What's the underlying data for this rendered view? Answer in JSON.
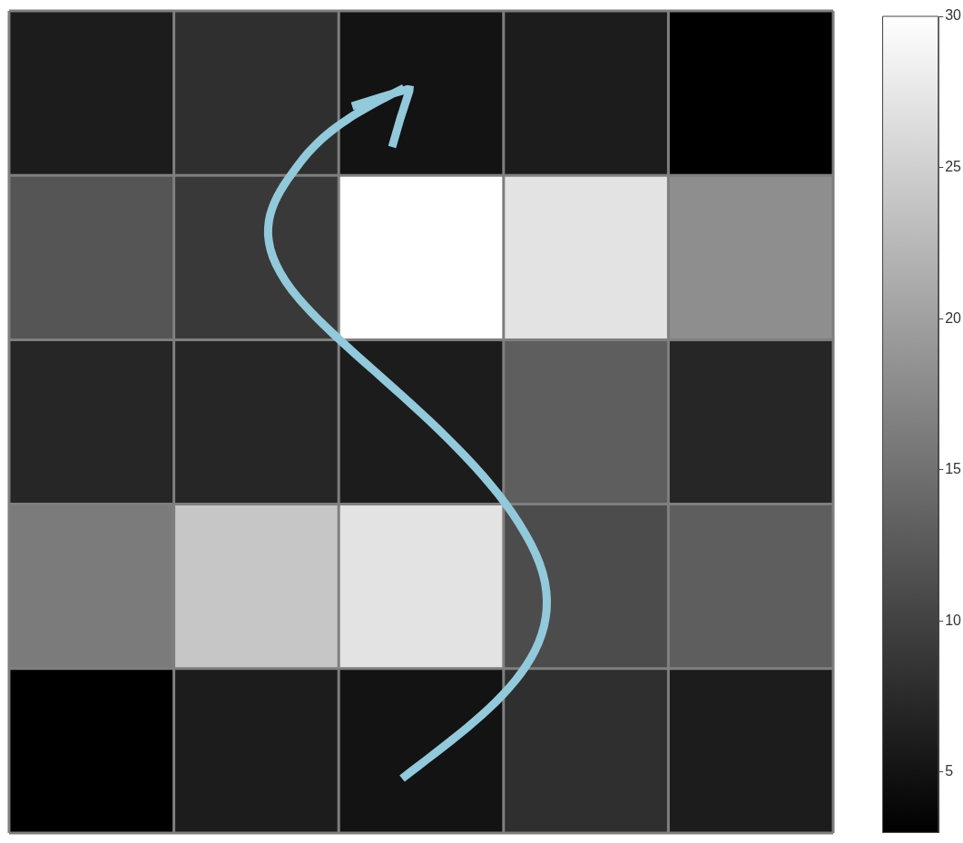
{
  "chart_data": {
    "type": "heatmap",
    "categories": [
      null,
      null,
      null,
      null,
      null
    ],
    "y_categories": [
      null,
      null,
      null,
      null,
      null
    ],
    "cells": [
      [
        6,
        8,
        5,
        6,
        3
      ],
      [
        12,
        9,
        30,
        27,
        18
      ],
      [
        7,
        7,
        6,
        13,
        7
      ],
      [
        16,
        24,
        27,
        11,
        13
      ],
      [
        3,
        6,
        5,
        8,
        6
      ]
    ],
    "clim": [
      3,
      30
    ],
    "cticks": [
      5,
      10,
      15,
      20,
      25,
      30
    ]
  }
}
